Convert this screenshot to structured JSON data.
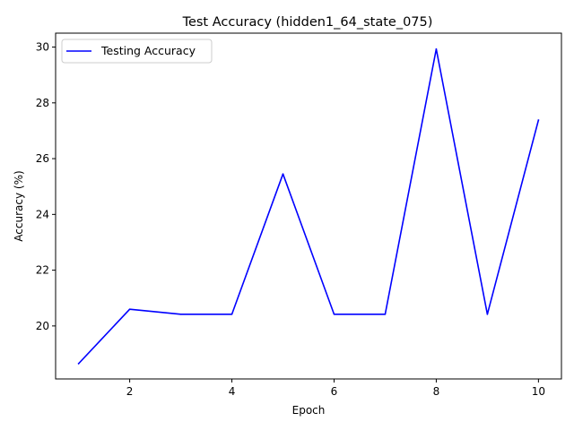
{
  "chart_data": {
    "type": "line",
    "title": "Test Accuracy (hidden1_64_state_075)",
    "xlabel": "Epoch",
    "ylabel": "Accuracy (%)",
    "x": [
      1,
      2,
      3,
      4,
      5,
      6,
      7,
      8,
      9,
      10
    ],
    "series": [
      {
        "name": "Testing Accuracy",
        "color": "#0000ff",
        "values": [
          18.65,
          20.6,
          20.42,
          20.42,
          25.45,
          20.42,
          20.42,
          29.93,
          20.42,
          27.38
        ]
      }
    ],
    "xlim": [
      0.55,
      10.45
    ],
    "ylim": [
      18.1,
      30.5
    ],
    "xticks": [
      2,
      4,
      6,
      8,
      10
    ],
    "yticks": [
      20,
      22,
      24,
      26,
      28,
      30
    ],
    "grid": false,
    "legend_position": "upper left"
  }
}
